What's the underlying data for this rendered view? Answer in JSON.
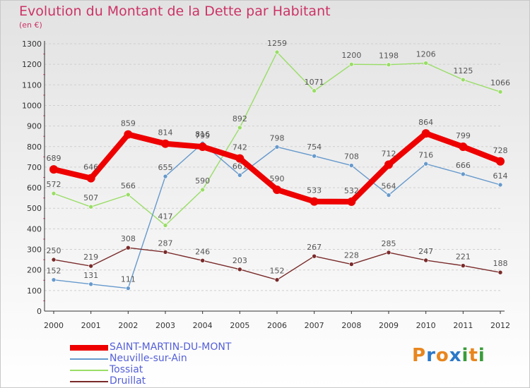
{
  "header": {
    "title": "Evolution du Montant de la Dette par Habitant",
    "unit": "(en €)"
  },
  "logo": {
    "letters": [
      "P",
      "r",
      "o",
      "x",
      "i",
      "t",
      "i"
    ],
    "colors": [
      "#e8861e",
      "#2b78c8",
      "#e8861e",
      "#2b78c8",
      "#3a9c3a",
      "#e8861e",
      "#3a9c3a"
    ]
  },
  "chart_data": {
    "type": "line",
    "title": "Evolution du Montant de la Dette par Habitant",
    "ylabel": "(en €)",
    "xlabel": "",
    "x": [
      "2000",
      "2001",
      "2002",
      "2003",
      "2004",
      "2005",
      "2006",
      "2007",
      "2008",
      "2009",
      "2010",
      "2011",
      "2012"
    ],
    "ylim": [
      0,
      1300
    ],
    "yticks": [
      0,
      100,
      200,
      300,
      400,
      500,
      600,
      700,
      800,
      900,
      1000,
      1100,
      1200,
      1300
    ],
    "grid": true,
    "legend_position": "bottom",
    "series": [
      {
        "name": "SAINT-MARTIN-DU-MONT",
        "color": "#ee0000",
        "width": 8,
        "values": [
          689,
          646,
          859,
          814,
          799,
          742,
          590,
          533,
          532,
          712,
          864,
          799,
          728
        ]
      },
      {
        "name": "Neuville-sur-Ain",
        "color": "#6699cc",
        "width": 1.4,
        "values": [
          152,
          131,
          111,
          655,
          816,
          661,
          798,
          754,
          708,
          564,
          716,
          666,
          614
        ]
      },
      {
        "name": "Tossiat",
        "color": "#99dd66",
        "width": 1.4,
        "values": [
          572,
          507,
          566,
          417,
          590,
          892,
          1259,
          1071,
          1200,
          1198,
          1206,
          1125,
          1066
        ]
      },
      {
        "name": "Druillat",
        "color": "#7a2a2a",
        "width": 1.4,
        "values": [
          250,
          219,
          308,
          287,
          246,
          203,
          152,
          267,
          228,
          285,
          247,
          221,
          188
        ]
      }
    ]
  }
}
